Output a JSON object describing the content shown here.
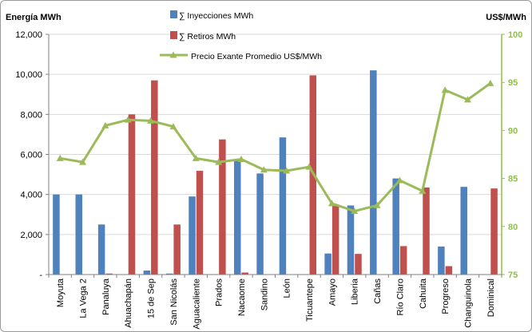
{
  "chart_data": {
    "type": "bar",
    "ylabel": "Energía MWh",
    "y2label": "US$/MWh",
    "ylim": [
      0,
      12000
    ],
    "y_ticks": [
      "-",
      "2,000",
      "4,000",
      "6,000",
      "8,000",
      "10,000",
      "12,000"
    ],
    "y2lim": [
      75,
      100
    ],
    "y2_ticks": [
      "75",
      "80",
      "85",
      "90",
      "95",
      "100"
    ],
    "grid": "horizontal",
    "legend_position": "top-center",
    "categories": [
      "Moyuta",
      "La Vega 2",
      "Panaluya",
      "Ahuachapán",
      "15 de Sep",
      "San Nicolás",
      "Aguacaliente",
      "Prados",
      "Nacaome",
      "Sandino",
      "León",
      "Ticuantepe",
      "Amayo",
      "Liberia",
      "Cañas",
      "Río Claro",
      "Cahuita",
      "Progreso",
      "Changuinola",
      "Dominical"
    ],
    "series": [
      {
        "name": "∑ Inyecciones MWh",
        "type": "bar",
        "axis": "left",
        "color": "#4f81bd",
        "values": [
          4000,
          4000,
          2500,
          0,
          200,
          50,
          3900,
          0,
          5700,
          5050,
          6850,
          0,
          1050,
          3450,
          10200,
          4800,
          0,
          1400,
          4380,
          0
        ]
      },
      {
        "name": "∑ Retiros MWh",
        "type": "bar",
        "axis": "left",
        "color": "#c0504d",
        "values": [
          0,
          0,
          50,
          8000,
          9700,
          2500,
          5180,
          6750,
          100,
          0,
          0,
          9950,
          3500,
          1030,
          0,
          1420,
          4350,
          420,
          0,
          4300
        ]
      },
      {
        "name": "Precio Exante Promedio US$/MWh",
        "type": "line",
        "axis": "right",
        "color": "#9bbb59",
        "values": [
          87.1,
          86.7,
          90.5,
          91.1,
          91.0,
          90.4,
          87.1,
          86.7,
          87.0,
          85.9,
          85.8,
          86.2,
          82.4,
          81.6,
          82.2,
          84.8,
          83.7,
          94.2,
          93.2,
          94.9
        ]
      }
    ]
  }
}
